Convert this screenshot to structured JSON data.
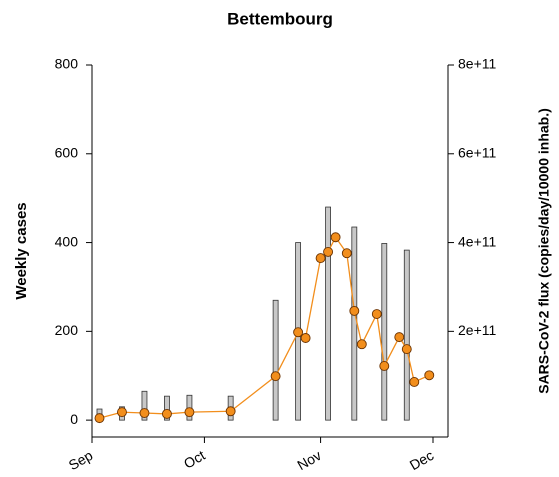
{
  "chart_data": {
    "type": "bar-line",
    "title": "Bettembourg",
    "ylabel": "Weekly cases",
    "y2label": "SARS-CoV-2 flux (copies/day/10000 inhab.)",
    "xlim": [
      0,
      95
    ],
    "xticks": [
      {
        "value": 0,
        "label": "Sep"
      },
      {
        "value": 30,
        "label": "Oct"
      },
      {
        "value": 61,
        "label": "Nov"
      },
      {
        "value": 91,
        "label": "Dec"
      }
    ],
    "ylim": [
      -38,
      800
    ],
    "yticks": [
      0,
      200,
      400,
      600,
      800
    ],
    "y2lim": [
      -38000000000,
      800000000000
    ],
    "y2ticks": [
      {
        "value": 200000000000,
        "label": "2e+11"
      },
      {
        "value": 400000000000,
        "label": "4e+11"
      },
      {
        "value": 600000000000,
        "label": "6e+11"
      },
      {
        "value": 800000000000,
        "label": "8e+11"
      }
    ],
    "bars": {
      "color": "#c8c8c8",
      "x": [
        2,
        8,
        14,
        20,
        26,
        37,
        49,
        55,
        63,
        70,
        78,
        84
      ],
      "values": [
        25,
        30,
        65,
        54,
        56,
        54,
        270,
        400,
        480,
        435,
        398,
        383
      ]
    },
    "line": {
      "color": "#f28e1c",
      "axis": "y2",
      "x": [
        2,
        8,
        14,
        20,
        26,
        37,
        49,
        55,
        57,
        61,
        63,
        65,
        68,
        70,
        72,
        76,
        78,
        82,
        84,
        86,
        90
      ],
      "values": [
        4500000000,
        18000000000,
        16000000000,
        14000000000,
        18000000000,
        20000000000,
        99000000000,
        198000000000,
        185000000000,
        365000000000,
        379000000000,
        412000000000,
        376000000000,
        246000000000,
        171000000000,
        239000000000,
        122000000000,
        187000000000,
        160000000000,
        86000000000,
        101000000000
      ]
    }
  }
}
